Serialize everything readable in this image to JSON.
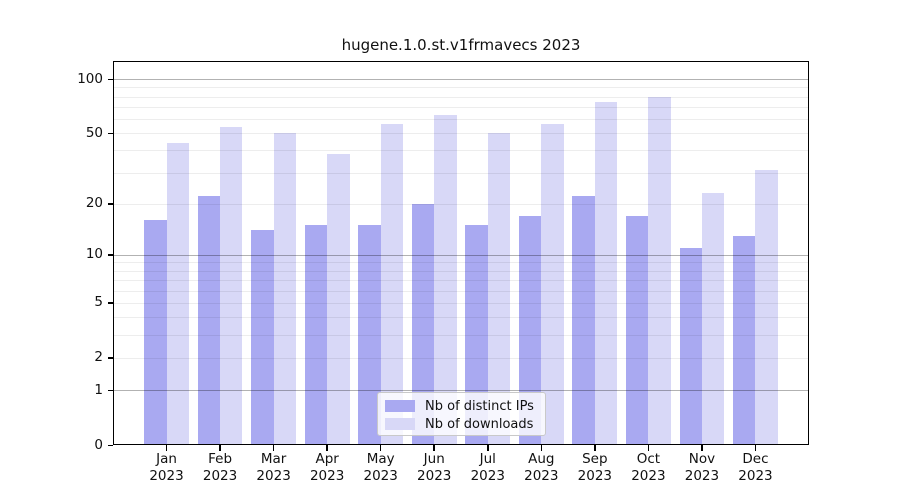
{
  "title": "hugene.1.0.st.v1frmavecs 2023",
  "legend": {
    "items": [
      {
        "label": "Nb of distinct IPs",
        "color": "#a9a9f1"
      },
      {
        "label": "Nb of downloads",
        "color": "#d8d8f7"
      }
    ]
  },
  "y_axis": {
    "tick_labels": [
      "100",
      "50",
      "20",
      "10",
      "5",
      "2",
      "1",
      "0"
    ]
  },
  "chart_data": {
    "type": "bar",
    "title": "hugene.1.0.st.v1frmavecs 2023",
    "categories": [
      "Jan 2023",
      "Feb 2023",
      "Mar 2023",
      "Apr 2023",
      "May 2023",
      "Jun 2023",
      "Jul 2023",
      "Aug 2023",
      "Sep 2023",
      "Oct 2023",
      "Nov 2023",
      "Dec 2023"
    ],
    "series": [
      {
        "name": "Nb of distinct IPs",
        "color": "#a9a9f1",
        "values": [
          16,
          22,
          14,
          15,
          15,
          20,
          15,
          17,
          22,
          17,
          11,
          13
        ]
      },
      {
        "name": "Nb of downloads",
        "color": "#d8d8f7",
        "values": [
          44,
          54,
          50,
          38,
          56,
          63,
          50,
          56,
          75,
          80,
          23,
          31
        ]
      }
    ],
    "xlabel": "",
    "ylabel": "",
    "yscale": "log1p",
    "yticks": [
      100,
      50,
      20,
      10,
      5,
      2,
      1,
      0
    ],
    "major_gridlines": [
      1,
      10,
      100
    ],
    "minor_gridlines": [
      2,
      3,
      4,
      5,
      6,
      7,
      8,
      9,
      20,
      30,
      40,
      50,
      60,
      70,
      80,
      90
    ],
    "ylim": [
      0,
      115
    ],
    "grid": true,
    "legend_position": "inside-bottom-center",
    "bar_colors": {
      "distinct_ips": "#a9a9f1",
      "downloads": "#d8d8f7"
    }
  }
}
